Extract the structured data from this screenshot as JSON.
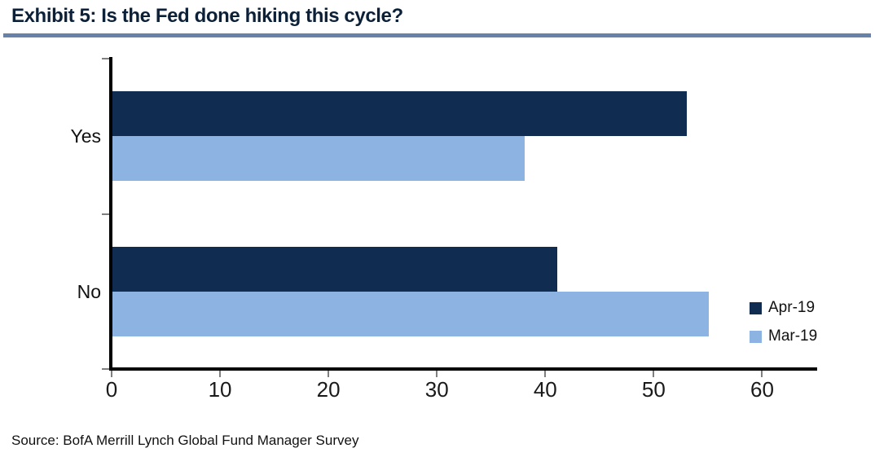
{
  "header": {
    "title": "Exhibit 5: Is the Fed done hiking this cycle?",
    "title_color": "#0c2038",
    "underline_color": "#6781a8"
  },
  "chart_data": {
    "type": "bar",
    "orientation": "horizontal",
    "title": "Exhibit 5: Is the Fed done hiking this cycle?",
    "categories": [
      "Yes",
      "No"
    ],
    "series": [
      {
        "name": "Apr-19",
        "values": [
          53,
          41
        ],
        "color": "#112c51"
      },
      {
        "name": "Mar-19",
        "values": [
          38,
          55
        ],
        "color": "#8db3e2"
      }
    ],
    "xlabel": "",
    "ylabel": "",
    "xlim": [
      0,
      65
    ],
    "xticks": [
      0,
      10,
      20,
      30,
      40,
      50,
      60
    ],
    "grid": false,
    "legend_position": "inside lower right",
    "axis_color": "#000000",
    "tick_color": "#7f7f7f"
  },
  "footer": {
    "source": "Source: BofA Merrill Lynch Global Fund Manager Survey"
  }
}
